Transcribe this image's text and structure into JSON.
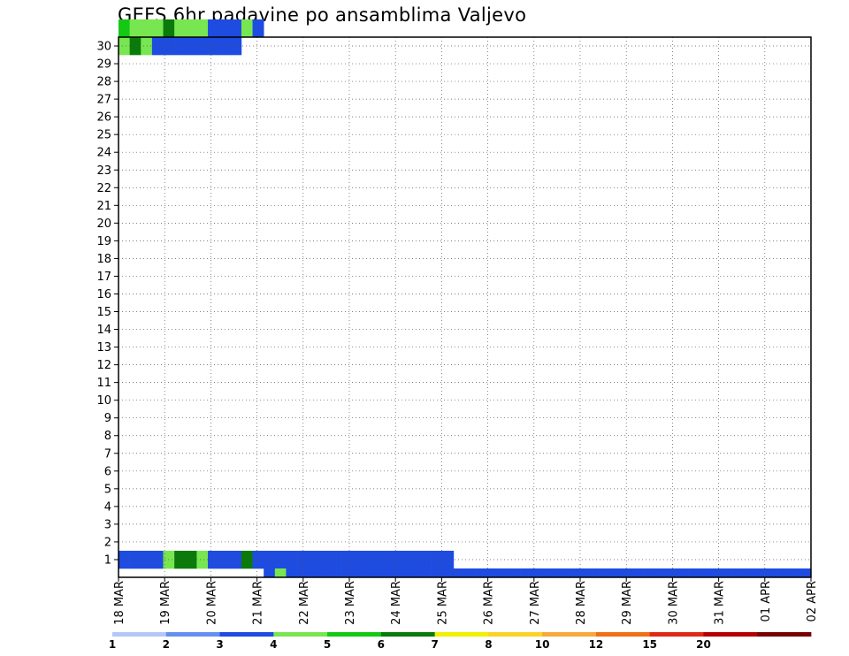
{
  "chart_data": {
    "type": "heatmap",
    "title": "GEFS 6hr padavine po ansamblima Valjevo",
    "xlabel": "",
    "ylabel": "",
    "x_tick_labels": [
      "18 MAR",
      "19 MAR",
      "20 MAR",
      "21 MAR",
      "22 MAR",
      "23 MAR",
      "24 MAR",
      "25 MAR",
      "26 MAR",
      "27 MAR",
      "28 MAR",
      "29 MAR",
      "30 MAR",
      "31 MAR",
      "01 APR",
      "02 APR"
    ],
    "y_tick_labels": [
      "1",
      "2",
      "3",
      "4",
      "5",
      "6",
      "7",
      "8",
      "9",
      "10",
      "11",
      "12",
      "13",
      "14",
      "15",
      "16",
      "17",
      "18",
      "19",
      "20",
      "21",
      "22",
      "23",
      "24",
      "25",
      "26",
      "27",
      "28",
      "29",
      "30"
    ],
    "colorbar_labels": [
      "1",
      "2",
      "3",
      "4",
      "5",
      "6",
      "7",
      "8",
      "10",
      "12",
      "15",
      "20"
    ],
    "colorbar_colors": [
      "#b4c8f8",
      "#6490f0",
      "#1e4be0",
      "#78e650",
      "#14c814",
      "#0a7a0a",
      "#f0f000",
      "#fcd228",
      "#f8a83c",
      "#f07018",
      "#e02818",
      "#b40000",
      "#780000"
    ],
    "grid": true,
    "cells": [
      [
        1,
        0,
        2
      ],
      [
        1,
        1,
        2
      ],
      [
        1,
        2,
        2
      ],
      [
        1,
        3,
        2
      ],
      [
        1,
        4,
        3
      ],
      [
        1,
        5,
        5
      ],
      [
        1,
        6,
        5
      ],
      [
        1,
        7,
        3
      ],
      [
        1,
        8,
        2
      ],
      [
        1,
        9,
        2
      ],
      [
        1,
        10,
        2
      ],
      [
        1,
        11,
        5
      ],
      [
        1,
        12,
        2
      ],
      [
        1,
        13,
        2
      ],
      [
        1,
        14,
        2
      ],
      [
        1,
        15,
        2
      ],
      [
        1,
        16,
        2
      ],
      [
        1,
        17,
        2
      ],
      [
        1,
        18,
        2
      ],
      [
        1,
        19,
        2
      ],
      [
        1,
        20,
        2
      ],
      [
        1,
        21,
        2
      ],
      [
        1,
        22,
        2
      ],
      [
        1,
        23,
        2
      ],
      [
        1,
        24,
        2
      ],
      [
        1,
        25,
        2
      ],
      [
        1,
        26,
        2
      ],
      [
        1,
        27,
        2
      ],
      [
        1,
        28,
        2
      ],
      [
        1,
        29,
        2
      ],
      [
        30,
        0,
        3
      ],
      [
        30,
        1,
        5
      ],
      [
        30,
        2,
        3
      ],
      [
        30,
        3,
        2
      ],
      [
        30,
        4,
        2
      ],
      [
        30,
        5,
        2
      ],
      [
        30,
        6,
        2
      ],
      [
        30,
        7,
        2
      ],
      [
        30,
        8,
        2
      ],
      [
        30,
        9,
        2
      ],
      [
        30,
        10,
        2
      ],
      [
        31,
        0,
        4
      ],
      [
        31,
        1,
        3
      ],
      [
        31,
        2,
        3
      ],
      [
        31,
        3,
        3
      ],
      [
        31,
        4,
        5
      ],
      [
        31,
        5,
        3
      ],
      [
        31,
        6,
        3
      ],
      [
        31,
        7,
        3
      ],
      [
        31,
        8,
        2
      ],
      [
        31,
        9,
        2
      ],
      [
        31,
        10,
        2
      ],
      [
        31,
        11,
        3
      ],
      [
        31,
        12,
        2
      ],
      [
        0,
        13,
        2
      ],
      [
        0,
        14,
        3
      ],
      [
        0,
        15,
        2
      ],
      [
        0,
        16,
        2
      ],
      [
        0,
        17,
        2
      ],
      [
        0,
        18,
        2
      ],
      [
        0,
        19,
        2
      ],
      [
        0,
        20,
        2
      ],
      [
        0,
        21,
        2
      ],
      [
        0,
        22,
        2
      ],
      [
        0,
        23,
        2
      ],
      [
        0,
        24,
        2
      ],
      [
        0,
        25,
        2
      ],
      [
        0,
        26,
        2
      ],
      [
        0,
        27,
        2
      ],
      [
        0,
        28,
        2
      ],
      [
        0,
        29,
        2
      ],
      [
        0,
        30,
        2
      ],
      [
        0,
        31,
        2
      ],
      [
        0,
        32,
        2
      ],
      [
        0,
        33,
        2
      ],
      [
        0,
        34,
        2
      ],
      [
        0,
        35,
        2
      ],
      [
        0,
        36,
        2
      ],
      [
        0,
        37,
        2
      ],
      [
        0,
        38,
        2
      ],
      [
        0,
        39,
        2
      ],
      [
        0,
        40,
        2
      ],
      [
        0,
        41,
        2
      ],
      [
        0,
        42,
        2
      ],
      [
        0,
        43,
        2
      ],
      [
        0,
        44,
        2
      ],
      [
        0,
        45,
        2
      ],
      [
        0,
        46,
        2
      ],
      [
        0,
        47,
        2
      ],
      [
        0,
        48,
        2
      ],
      [
        0,
        49,
        2
      ],
      [
        0,
        50,
        2
      ],
      [
        0,
        51,
        2
      ],
      [
        0,
        52,
        2
      ],
      [
        0,
        53,
        2
      ],
      [
        0,
        54,
        2
      ],
      [
        0,
        55,
        2
      ],
      [
        0,
        56,
        2
      ],
      [
        0,
        57,
        2
      ],
      [
        0,
        58,
        2
      ],
      [
        0,
        59,
        2
      ],
      [
        0,
        60,
        2
      ],
      [
        0,
        61,
        2
      ]
    ]
  }
}
